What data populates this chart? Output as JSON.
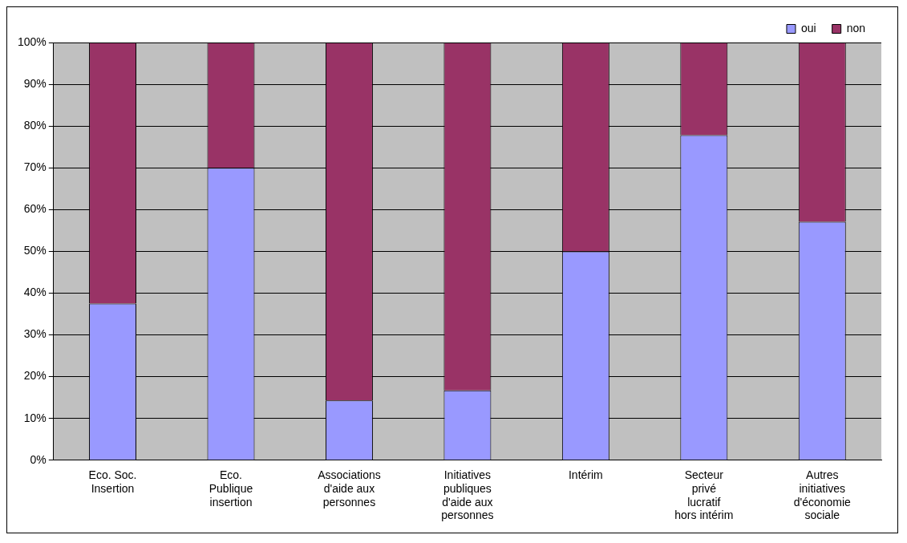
{
  "chart_data": {
    "type": "bar",
    "stacked": true,
    "categories": [
      "Eco. Soc. Insertion",
      "Eco. Publique insertion",
      "Associations d'aide aux personnes",
      "Initiatives publiques d'aide aux personnes",
      "Intérim",
      "Secteur privé lucratif hors intérim",
      "Autres initiatives d'économie sociale"
    ],
    "series": [
      {
        "name": "oui",
        "color": "#9999ff",
        "values": [
          37.5,
          70,
          14.3,
          16.7,
          50,
          77.8,
          57.1
        ]
      },
      {
        "name": "non",
        "color": "#993366",
        "values": [
          62.5,
          30,
          85.7,
          83.3,
          50,
          22.2,
          42.9
        ]
      }
    ],
    "ylim": [
      0,
      100
    ],
    "yticks": [
      {
        "value": 0,
        "label": "0%"
      },
      {
        "value": 10,
        "label": "10%"
      },
      {
        "value": 20,
        "label": "20%"
      },
      {
        "value": 30,
        "label": "30%"
      },
      {
        "value": 40,
        "label": "40%"
      },
      {
        "value": 50,
        "label": "50%"
      },
      {
        "value": 60,
        "label": "60%"
      },
      {
        "value": 70,
        "label": "70%"
      },
      {
        "value": 80,
        "label": "80%"
      },
      {
        "value": 90,
        "label": "90%"
      },
      {
        "value": 100,
        "label": "100%"
      }
    ],
    "grid": "y",
    "legend": "top right"
  }
}
